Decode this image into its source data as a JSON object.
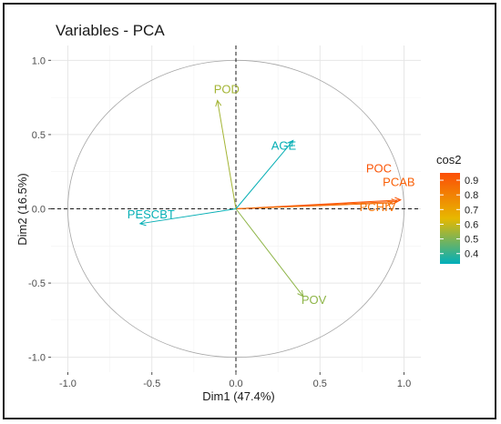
{
  "chart_data": {
    "type": "scatter",
    "title": "Variables - PCA",
    "xlabel": "Dim1 (47.4%)",
    "ylabel": "Dim2 (16.5%)",
    "xlim": [
      -1.1,
      1.1
    ],
    "ylim": [
      -1.1,
      1.1
    ],
    "x_ticks": [
      -1.0,
      -0.5,
      0.0,
      0.5,
      1.0
    ],
    "y_ticks": [
      -1.0,
      -0.5,
      0.0,
      0.5,
      1.0
    ],
    "x_tick_labels": [
      "-1.0",
      "-0.5",
      "0.0",
      "0.5",
      "1.0"
    ],
    "y_tick_labels": [
      "-1.0",
      "-0.5",
      "0.0",
      "0.5",
      "1.0"
    ],
    "grid": true,
    "correlation_circle": true,
    "series": [
      {
        "name": "POC",
        "x": 0.98,
        "y": 0.06,
        "cos2": 0.93
      },
      {
        "name": "PCAB",
        "x": 0.96,
        "y": 0.05,
        "cos2": 0.9
      },
      {
        "name": "PCHIV",
        "x": 0.93,
        "y": 0.04,
        "cos2": 0.85
      },
      {
        "name": "POD",
        "x": -0.11,
        "y": 0.73,
        "cos2": 0.55
      },
      {
        "name": "AGE",
        "x": 0.34,
        "y": 0.46,
        "cos2": 0.34
      },
      {
        "name": "PESCBT",
        "x": -0.57,
        "y": -0.1,
        "cos2": 0.34
      },
      {
        "name": "POV",
        "x": 0.4,
        "y": -0.59,
        "cos2": 0.52
      }
    ],
    "legend": {
      "title": "cos2",
      "position": "right",
      "ticks": [
        0.9,
        0.8,
        0.7,
        0.6,
        0.5,
        0.4
      ],
      "tick_labels": [
        "0.9",
        "0.8",
        "0.7",
        "0.6",
        "0.5",
        "0.4"
      ],
      "range": [
        0.33,
        0.95
      ],
      "colors": {
        "low": "#00AFBB",
        "mid": "#E7B800",
        "high": "#FC4E07"
      }
    }
  }
}
